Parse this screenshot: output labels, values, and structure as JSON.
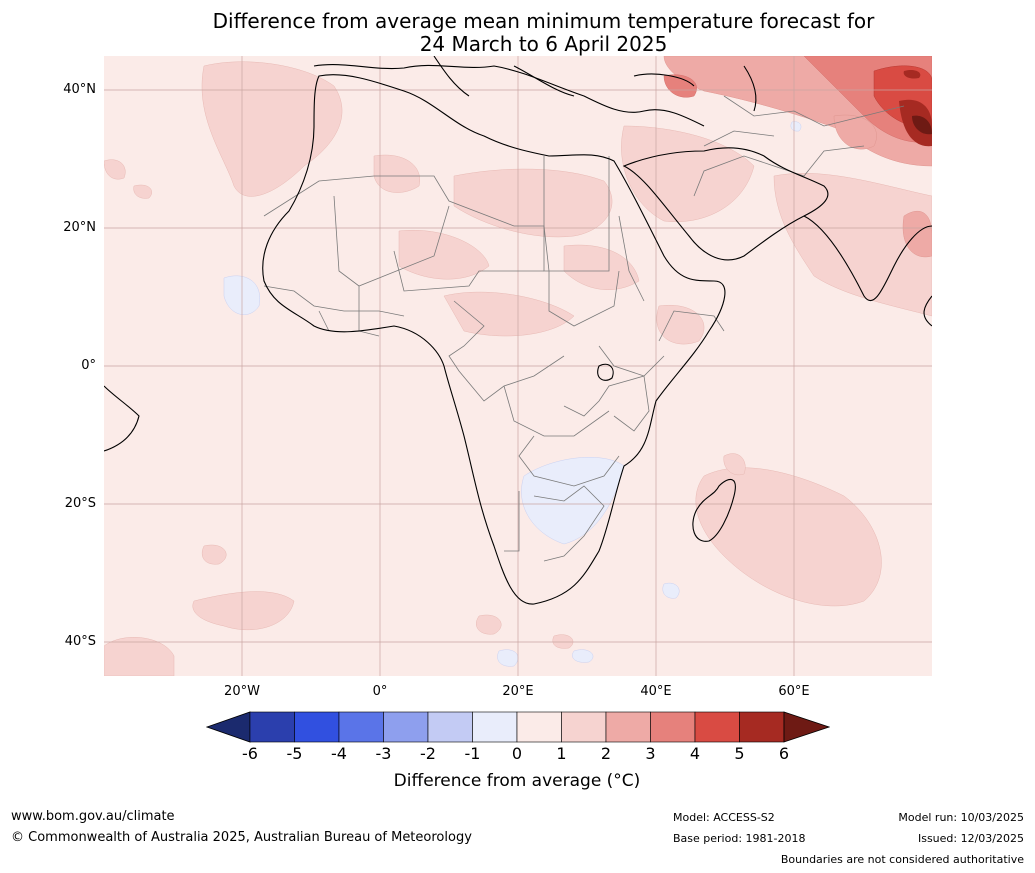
{
  "title": {
    "line1": "Difference from average mean minimum temperature forecast for",
    "line2": "24 March to 6 April 2025"
  },
  "lat_labels": [
    "40°N",
    "20°N",
    "0°",
    "20°S",
    "40°S"
  ],
  "lon_labels": [
    "20°W",
    "0°",
    "20°E",
    "40°E",
    "60°E"
  ],
  "colorbar": {
    "ticks": [
      "-6",
      "-5",
      "-4",
      "-3",
      "-2",
      "-1",
      "0",
      "1",
      "2",
      "3",
      "4",
      "5",
      "6"
    ],
    "colors": [
      "#1b2a6e",
      "#2b3fad",
      "#3150e0",
      "#5a74e8",
      "#8e9fee",
      "#c3cbf4",
      "#e9edfb",
      "#fbebe8",
      "#f6d3d0",
      "#eeaaa6",
      "#e6817c",
      "#d94b43",
      "#a62a22",
      "#6e1a14"
    ],
    "label": "Difference from average (°C)"
  },
  "footer": {
    "url": "www.bom.gov.au/climate",
    "copyright": "© Commonwealth of Australia 2025, Australian Bureau of Meteorology",
    "model": "Model: ACCESS-S2",
    "base_period": "Base period: 1981-2018",
    "model_run": "Model run: 10/03/2025",
    "issued": "Issued: 12/03/2025",
    "disclaimer": "Boundaries are not considered authoritative"
  }
}
